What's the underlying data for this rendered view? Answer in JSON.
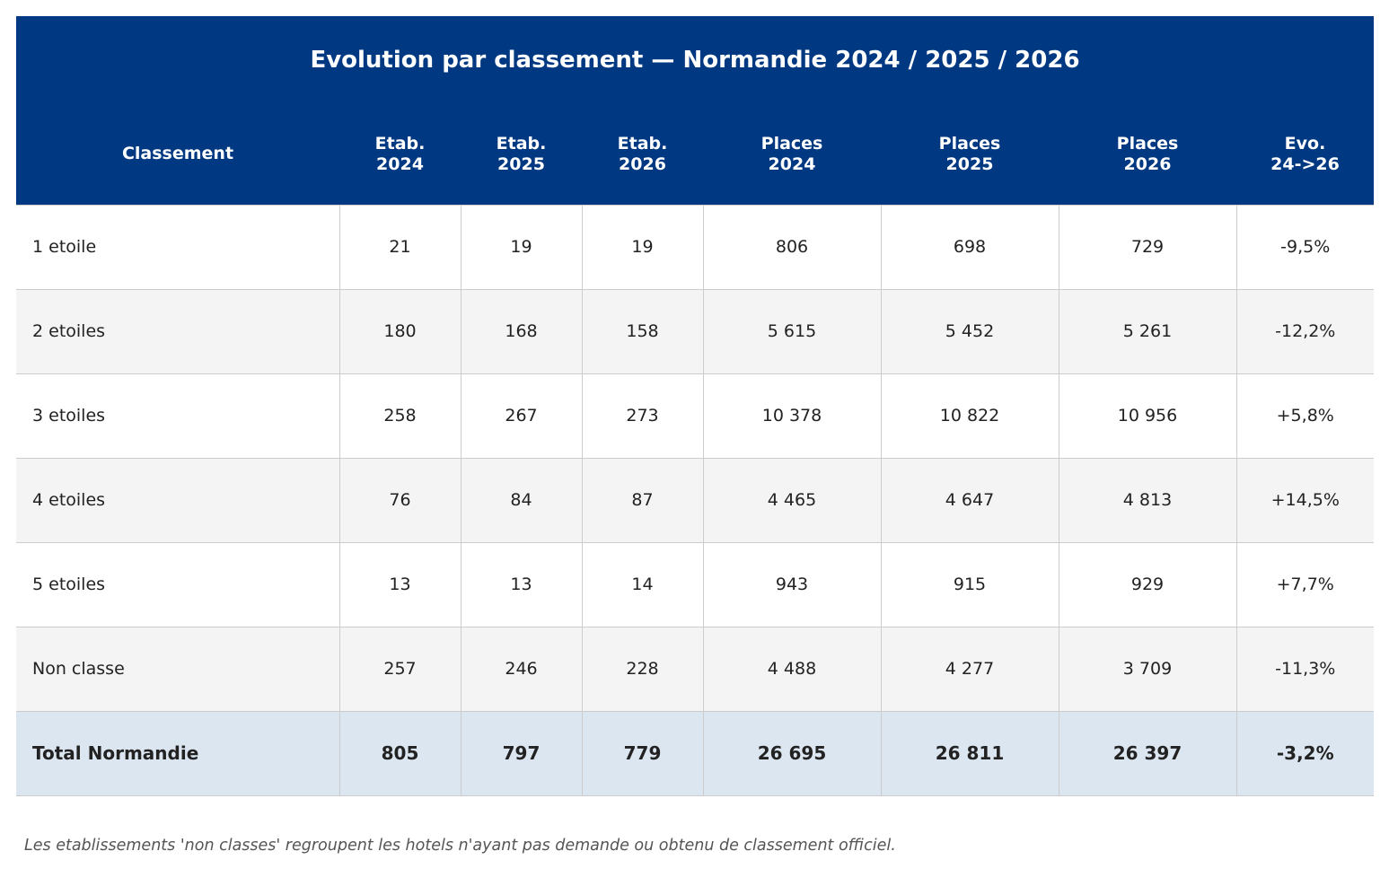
{
  "title": "Evolution par classement — Normandie 2024 / 2025 / 2026",
  "columns": [
    "Classement",
    "Etab.\n2024",
    "Etab.\n2025",
    "Etab.\n2026",
    "Places\n2024",
    "Places\n2025",
    "Places\n2026",
    "Evo.\n24->26"
  ],
  "rows": [
    [
      "1 etoile",
      "21",
      "19",
      "19",
      "806",
      "698",
      "729",
      "-9,5%"
    ],
    [
      "2 etoiles",
      "180",
      "168",
      "158",
      "5 615",
      "5 452",
      "5 261",
      "-12,2%"
    ],
    [
      "3 etoiles",
      "258",
      "267",
      "273",
      "10 378",
      "10 822",
      "10 956",
      "+5,8%"
    ],
    [
      "4 etoiles",
      "76",
      "84",
      "87",
      "4 465",
      "4 647",
      "4 813",
      "+14,5%"
    ],
    [
      "5 etoiles",
      "13",
      "13",
      "14",
      "943",
      "915",
      "929",
      "+7,7%"
    ],
    [
      "Non classe",
      "257",
      "246",
      "228",
      "4 488",
      "4 277",
      "3 709",
      "-11,3%"
    ]
  ],
  "total": [
    "Total Normandie",
    "805",
    "797",
    "779",
    "26 695",
    "26 811",
    "26 397",
    "-3,2%"
  ],
  "footnote": "Les etablissements 'non classes' regroupent les hotels n'ayant pas demande ou obtenu de classement officiel.",
  "colors": {
    "header_bg": "#003882",
    "row_alt_bg": "#f4f4f4",
    "total_bg": "#dce6f0"
  }
}
